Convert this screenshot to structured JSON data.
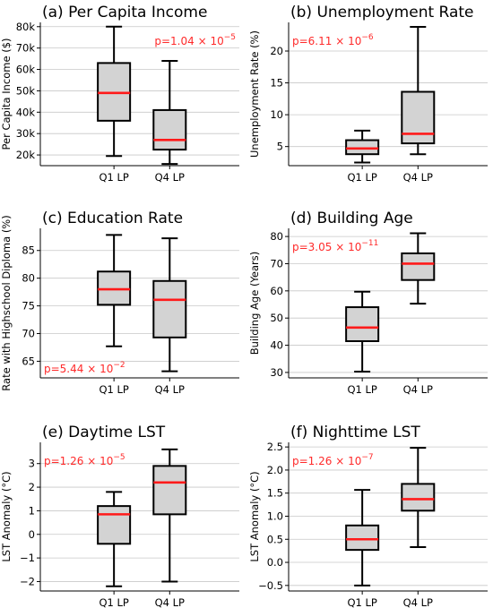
{
  "colors": {
    "box_fill": "#d3d3d3",
    "median": "#ff1a1a",
    "pvalue_text": "#ff2a2a",
    "grid": "#c8c8c8"
  },
  "chart_data": [
    {
      "type": "box",
      "title": "(a) Per Capita Income",
      "ylabel": "Per Capita Income ($)",
      "categories": [
        "Q1 LP",
        "Q4 LP"
      ],
      "ylim": [
        15000,
        82000
      ],
      "yticks": [
        20000,
        30000,
        40000,
        50000,
        60000,
        70000,
        80000
      ],
      "ytick_labels": [
        "20k",
        "30k",
        "40k",
        "50k",
        "60k",
        "70k",
        "80k"
      ],
      "boxes": [
        {
          "whislo": 19500,
          "q1": 36000,
          "med": 49000,
          "q3": 63000,
          "whishi": 80000
        },
        {
          "whislo": 15800,
          "q1": 22500,
          "med": 27000,
          "q3": 41000,
          "whishi": 64000
        }
      ],
      "pvalue": {
        "text": "p=1.04 × 10",
        "exp": "−5",
        "position": "top-right"
      },
      "grid": "horizontal"
    },
    {
      "type": "box",
      "title": "(b) Unemployment Rate",
      "ylabel": "Unemployment Rate (%)",
      "categories": [
        "Q1 LP",
        "Q4 LP"
      ],
      "ylim": [
        2,
        24.5
      ],
      "yticks": [
        5,
        10,
        15,
        20
      ],
      "ytick_labels": [
        "5",
        "10",
        "15",
        "20"
      ],
      "boxes": [
        {
          "whislo": 2.5,
          "q1": 3.8,
          "med": 4.7,
          "q3": 6.0,
          "whishi": 7.5
        },
        {
          "whislo": 3.8,
          "q1": 5.5,
          "med": 7.0,
          "q3": 13.6,
          "whishi": 23.8
        }
      ],
      "pvalue": {
        "text": "p=6.11 × 10",
        "exp": "−6",
        "position": "top-left"
      },
      "grid": "horizontal"
    },
    {
      "type": "box",
      "title": "(c) Education Rate",
      "ylabel": "Rate with Highschool Diploma (%)",
      "categories": [
        "Q1 LP",
        "Q4 LP"
      ],
      "ylim": [
        62,
        89
      ],
      "yticks": [
        65,
        70,
        75,
        80,
        85
      ],
      "ytick_labels": [
        "65",
        "70",
        "75",
        "80",
        "85"
      ],
      "boxes": [
        {
          "whislo": 67.7,
          "q1": 75.2,
          "med": 78.0,
          "q3": 81.2,
          "whishi": 87.8
        },
        {
          "whislo": 63.2,
          "q1": 69.3,
          "med": 76.1,
          "q3": 79.5,
          "whishi": 87.2
        }
      ],
      "pvalue": {
        "text": "p=5.44 × 10",
        "exp": "−2",
        "position": "bottom-left"
      },
      "grid": "horizontal"
    },
    {
      "type": "box",
      "title": "(d) Building Age",
      "ylabel": "Building Age (Years)",
      "categories": [
        "Q1 LP",
        "Q4 LP"
      ],
      "ylim": [
        28,
        83
      ],
      "yticks": [
        30,
        40,
        50,
        60,
        70,
        80
      ],
      "ytick_labels": [
        "30",
        "40",
        "50",
        "60",
        "70",
        "80"
      ],
      "boxes": [
        {
          "whislo": 30.3,
          "q1": 41.5,
          "med": 46.5,
          "q3": 54.0,
          "whishi": 59.7
        },
        {
          "whislo": 55.3,
          "q1": 64.0,
          "med": 70.0,
          "q3": 73.8,
          "whishi": 81.2
        }
      ],
      "pvalue": {
        "text": "p=3.05 × 10",
        "exp": "−11",
        "position": "top-left"
      },
      "grid": "horizontal"
    },
    {
      "type": "box",
      "title": "(e) Daytime LST",
      "ylabel": "LST Anomaly (°C)",
      "categories": [
        "Q1 LP",
        "Q4 LP"
      ],
      "ylim": [
        -2.4,
        3.9
      ],
      "yticks": [
        -2,
        -1,
        0,
        1,
        2,
        3
      ],
      "ytick_labels": [
        "−2",
        "−1",
        "0",
        "1",
        "2",
        "3"
      ],
      "boxes": [
        {
          "whislo": -2.2,
          "q1": -0.4,
          "med": 0.85,
          "q3": 1.2,
          "whishi": 1.8
        },
        {
          "whislo": -2.0,
          "q1": 0.85,
          "med": 2.2,
          "q3": 2.9,
          "whishi": 3.6
        }
      ],
      "pvalue": {
        "text": "p=1.26 × 10",
        "exp": "−5",
        "position": "top-left"
      },
      "grid": "horizontal"
    },
    {
      "type": "box",
      "title": "(f) Nighttime LST",
      "ylabel": "LST Anomaly (°C)",
      "categories": [
        "Q1 LP",
        "Q4 LP"
      ],
      "ylim": [
        -0.62,
        2.6
      ],
      "yticks": [
        -0.5,
        0.0,
        0.5,
        1.0,
        1.5,
        2.0,
        2.5
      ],
      "ytick_labels": [
        "−0.5",
        "0.0",
        "0.5",
        "1.0",
        "1.5",
        "2.0",
        "2.5"
      ],
      "boxes": [
        {
          "whislo": -0.5,
          "q1": 0.27,
          "med": 0.5,
          "q3": 0.8,
          "whishi": 1.57
        },
        {
          "whislo": 0.33,
          "q1": 1.12,
          "med": 1.37,
          "q3": 1.7,
          "whishi": 2.48
        }
      ],
      "pvalue": {
        "text": "p=1.26 × 10",
        "exp": "−7",
        "position": "top-left"
      },
      "grid": "horizontal"
    }
  ]
}
